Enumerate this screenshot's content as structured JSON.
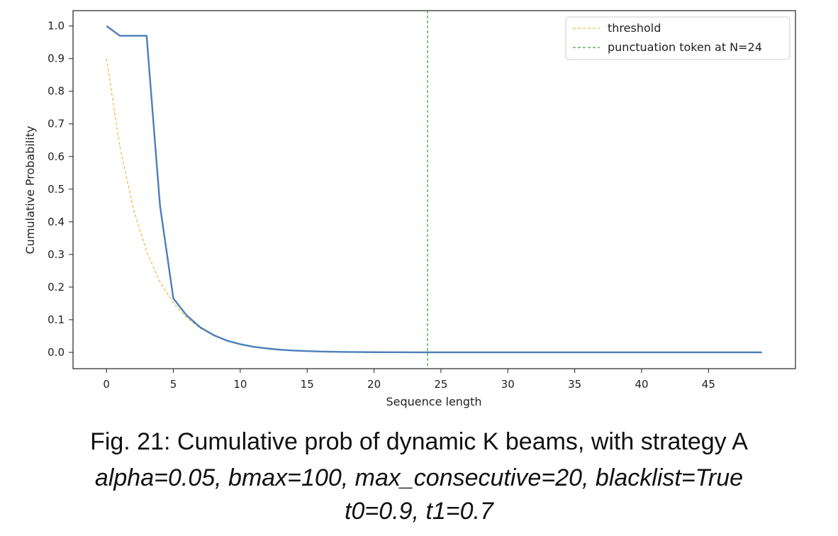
{
  "chart_data": {
    "type": "line",
    "xlabel": "Sequence length",
    "ylabel": "Cumulative Probability",
    "xlim": [
      -2.5,
      51.5
    ],
    "ylim": [
      -0.05,
      1.047
    ],
    "xticks": [
      0,
      5,
      10,
      15,
      20,
      25,
      30,
      35,
      40,
      45
    ],
    "yticks": [
      0.0,
      0.1,
      0.2,
      0.3,
      0.4,
      0.5,
      0.6,
      0.7,
      0.8,
      0.9,
      1.0
    ],
    "ytick_labels": [
      "0.0",
      "0.1",
      "0.2",
      "0.3",
      "0.4",
      "0.5",
      "0.6",
      "0.7",
      "0.8",
      "0.9",
      "1.0"
    ],
    "grid": false,
    "legend_position": "top-right",
    "series": [
      {
        "color": "#4a7fba",
        "style": "solid",
        "x": [
          0,
          1,
          2,
          3,
          4,
          5,
          6,
          7,
          8,
          9,
          10,
          11,
          12,
          13,
          14,
          15,
          16,
          17,
          18,
          19,
          20,
          21,
          22,
          23,
          24,
          25,
          26,
          27,
          28,
          29,
          30,
          31,
          32,
          33,
          34,
          35,
          36,
          37,
          38,
          39,
          40,
          41,
          42,
          43,
          44,
          45,
          46,
          47,
          48,
          49
        ],
        "y": [
          1.0,
          0.97,
          0.97,
          0.97,
          0.45,
          0.165,
          0.113,
          0.077,
          0.053,
          0.036,
          0.025,
          0.017,
          0.012,
          0.008,
          0.0056,
          0.0038,
          0.0026,
          0.0018,
          0.0012,
          0.0008,
          0.0005,
          0.0004,
          0.0003,
          0.0002,
          0.0001,
          0.0001,
          0.0001,
          0.0,
          0.0,
          0.0,
          0.0,
          0.0,
          0.0,
          0.0,
          0.0,
          0.0,
          0.0,
          0.0,
          0.0,
          0.0,
          0.0,
          0.0,
          0.0,
          0.0,
          0.0,
          0.0,
          0.0,
          0.0,
          0.0,
          0.0
        ]
      },
      {
        "name": "threshold",
        "color": "#f5b942",
        "style": "dashed",
        "x": [
          0,
          1,
          2,
          3,
          4,
          5,
          6,
          7,
          8,
          9,
          10,
          11,
          12,
          13,
          14,
          15,
          16,
          17,
          18,
          19,
          20,
          21,
          22,
          23,
          24,
          25,
          26,
          27,
          28,
          29,
          30,
          31,
          32,
          33,
          34,
          35,
          36,
          37,
          38,
          39,
          40,
          41,
          42,
          43,
          44,
          45,
          46,
          47,
          48,
          49
        ],
        "y": [
          0.9,
          0.63,
          0.441,
          0.309,
          0.216,
          0.151,
          0.106,
          0.074,
          0.052,
          0.036,
          0.025,
          0.018,
          0.012,
          0.0087,
          0.0061,
          0.0043,
          0.003,
          0.0021,
          0.0015,
          0.001,
          0.0007,
          0.0005,
          0.0003,
          0.0002,
          0.0002,
          0.0001,
          0.0001,
          0.0,
          0.0,
          0.0,
          0.0,
          0.0,
          0.0,
          0.0,
          0.0,
          0.0,
          0.0,
          0.0,
          0.0,
          0.0,
          0.0,
          0.0,
          0.0,
          0.0,
          0.0,
          0.0,
          0.0,
          0.0,
          0.0,
          0.0
        ]
      }
    ],
    "vlines": [
      {
        "name": "punctuation token at N=24",
        "x": 24,
        "color": "#3fa63f",
        "style": "dashed"
      }
    ]
  },
  "caption": {
    "line1": "Fig. 21: Cumulative prob of dynamic K beams, with strategy A",
    "line2": "alpha=0.05, bmax=100, max_consecutive=20, blacklist=True",
    "line3": "t0=0.9, t1=0.7"
  }
}
